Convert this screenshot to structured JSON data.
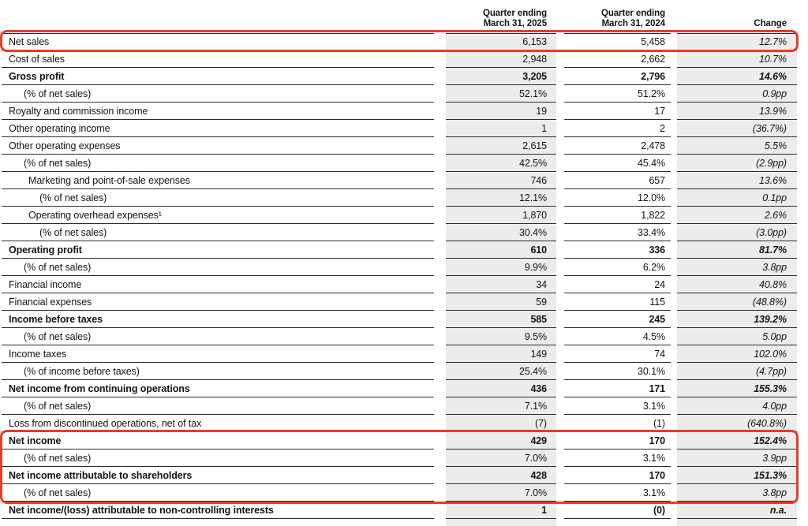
{
  "table": {
    "header": {
      "col_2025": "Quarter ending\nMarch 31, 2025",
      "col_2024": "Quarter ending\nMarch 31, 2024",
      "col_change": "Change"
    },
    "rows": [
      {
        "label": "Net sales",
        "indent": 0,
        "bold": false,
        "q2025": "6,153",
        "q2024": "5,458",
        "change": "12.7%"
      },
      {
        "label": "Cost of sales",
        "indent": 0,
        "bold": false,
        "q2025": "2,948",
        "q2024": "2,662",
        "change": "10.7%"
      },
      {
        "label": "Gross profit",
        "indent": 0,
        "bold": true,
        "q2025": "3,205",
        "q2024": "2,796",
        "change": "14.6%"
      },
      {
        "label": "(% of net sales)",
        "indent": 1,
        "bold": false,
        "q2025": "52.1%",
        "q2024": "51.2%",
        "change": "0.9pp"
      },
      {
        "label": "Royalty and commission income",
        "indent": 0,
        "bold": false,
        "q2025": "19",
        "q2024": "17",
        "change": "13.9%"
      },
      {
        "label": "Other operating income",
        "indent": 0,
        "bold": false,
        "q2025": "1",
        "q2024": "2",
        "change": "(36.7%)"
      },
      {
        "label": "Other operating expenses",
        "indent": 0,
        "bold": false,
        "q2025": "2,615",
        "q2024": "2,478",
        "change": "5.5%"
      },
      {
        "label": "(% of net sales)",
        "indent": 1,
        "bold": false,
        "q2025": "42.5%",
        "q2024": "45.4%",
        "change": "(2.9pp)"
      },
      {
        "label": "Marketing and point-of-sale expenses",
        "indent": 2,
        "bold": false,
        "q2025": "746",
        "q2024": "657",
        "change": "13.6%"
      },
      {
        "label": "(% of net sales)",
        "indent": 3,
        "bold": false,
        "q2025": "12.1%",
        "q2024": "12.0%",
        "change": "0.1pp"
      },
      {
        "label": "Operating overhead expenses¹",
        "indent": 2,
        "bold": false,
        "q2025": "1,870",
        "q2024": "1,822",
        "change": "2.6%"
      },
      {
        "label": "(% of net sales)",
        "indent": 3,
        "bold": false,
        "q2025": "30.4%",
        "q2024": "33.4%",
        "change": "(3.0pp)"
      },
      {
        "label": "Operating profit",
        "indent": 0,
        "bold": true,
        "q2025": "610",
        "q2024": "336",
        "change": "81.7%"
      },
      {
        "label": "(% of net sales)",
        "indent": 1,
        "bold": false,
        "q2025": "9.9%",
        "q2024": "6.2%",
        "change": "3.8pp"
      },
      {
        "label": "Financial income",
        "indent": 0,
        "bold": false,
        "q2025": "34",
        "q2024": "24",
        "change": "40.8%"
      },
      {
        "label": "Financial expenses",
        "indent": 0,
        "bold": false,
        "q2025": "59",
        "q2024": "115",
        "change": "(48.8%)"
      },
      {
        "label": "Income before taxes",
        "indent": 0,
        "bold": true,
        "q2025": "585",
        "q2024": "245",
        "change": "139.2%"
      },
      {
        "label": "(% of net sales)",
        "indent": 1,
        "bold": false,
        "q2025": "9.5%",
        "q2024": "4.5%",
        "change": "5.0pp"
      },
      {
        "label": "Income taxes",
        "indent": 0,
        "bold": false,
        "q2025": "149",
        "q2024": "74",
        "change": "102.0%"
      },
      {
        "label": "(% of income before taxes)",
        "indent": 1,
        "bold": false,
        "q2025": "25.4%",
        "q2024": "30.1%",
        "change": "(4.7pp)"
      },
      {
        "label": "Net income from continuing operations",
        "indent": 0,
        "bold": true,
        "q2025": "436",
        "q2024": "171",
        "change": "155.3%"
      },
      {
        "label": "(% of net sales)",
        "indent": 1,
        "bold": false,
        "q2025": "7.1%",
        "q2024": "3.1%",
        "change": "4.0pp"
      },
      {
        "label": "Loss from discontinued operations, net of tax",
        "indent": 0,
        "bold": false,
        "q2025": "(7)",
        "q2024": "(1)",
        "change": "(640.8%)"
      },
      {
        "label": "Net income",
        "indent": 0,
        "bold": true,
        "q2025": "429",
        "q2024": "170",
        "change": "152.4%"
      },
      {
        "label": "(% of net sales)",
        "indent": 1,
        "bold": false,
        "q2025": "7.0%",
        "q2024": "3.1%",
        "change": "3.9pp"
      },
      {
        "label": "Net income attributable to shareholders",
        "indent": 0,
        "bold": true,
        "q2025": "428",
        "q2024": "170",
        "change": "151.3%"
      },
      {
        "label": "(% of net sales)",
        "indent": 1,
        "bold": false,
        "q2025": "7.0%",
        "q2024": "3.1%",
        "change": "3.8pp"
      },
      {
        "label": "Net income/(loss) attributable to non-controlling interests",
        "indent": 0,
        "bold": true,
        "q2025": "1",
        "q2024": "(0)",
        "change": "n.a."
      }
    ]
  },
  "highlights": {
    "color": "#ee3a23",
    "boxes": [
      {
        "name": "net-sales-highlight",
        "covers": "Net sales row"
      },
      {
        "name": "net-income-highlight",
        "covers": "Net income through Net income attributable to shareholders (% of net sales)"
      }
    ]
  },
  "colors": {
    "cell_shade": "#ececec",
    "row_border": "#2b2b2b",
    "text": "#141414"
  }
}
